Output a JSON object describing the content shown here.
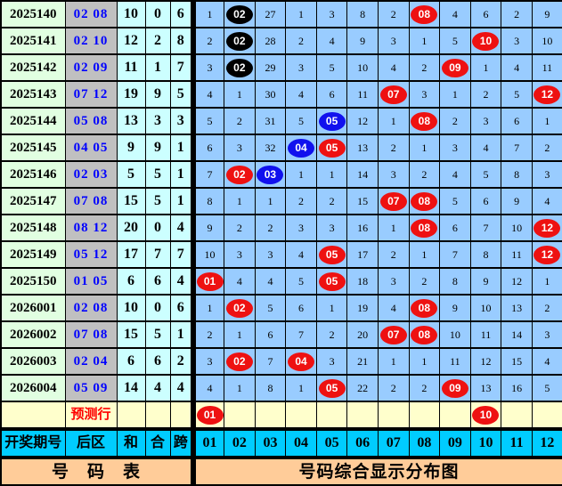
{
  "colors": {
    "ball_red": "#ee1111",
    "ball_blue": "#1111ee",
    "ball_black": "#000000",
    "grid_bg": "#99ccff",
    "period_bg": "#e1ffe1",
    "rear_bg": "#c0c0c0",
    "stat_bg": "#ccffff",
    "prediction_bg": "#ffffcc",
    "header_bg": "#00ccff",
    "footer_bg": "#ffcc99",
    "rear_text": "#0000ff",
    "prediction_text": "#ff0000"
  },
  "chart_data": {
    "type": "table",
    "title": "号码综合显示分布图",
    "left_headers": [
      "开奖期号",
      "后区",
      "和",
      "合",
      "跨"
    ],
    "number_headers": [
      "01",
      "02",
      "03",
      "04",
      "05",
      "06",
      "07",
      "08",
      "09",
      "10",
      "11",
      "12"
    ],
    "rows": [
      {
        "period": "2025140",
        "rear": "02 08",
        "sum": "10",
        "tail": "0",
        "span": "6",
        "cells": [
          "1",
          {
            "v": "02",
            "ball": "black"
          },
          "27",
          "1",
          "3",
          "8",
          "2",
          {
            "v": "08",
            "ball": "red"
          },
          "4",
          "6",
          "2",
          "9"
        ]
      },
      {
        "period": "2025141",
        "rear": "02 10",
        "sum": "12",
        "tail": "2",
        "span": "8",
        "cells": [
          "2",
          {
            "v": "02",
            "ball": "black"
          },
          "28",
          "2",
          "4",
          "9",
          "3",
          "1",
          "5",
          {
            "v": "10",
            "ball": "red"
          },
          "3",
          "10"
        ]
      },
      {
        "period": "2025142",
        "rear": "02 09",
        "sum": "11",
        "tail": "1",
        "span": "7",
        "cells": [
          "3",
          {
            "v": "02",
            "ball": "black"
          },
          "29",
          "3",
          "5",
          "10",
          "4",
          "2",
          {
            "v": "09",
            "ball": "red"
          },
          "1",
          "4",
          "11"
        ]
      },
      {
        "period": "2025143",
        "rear": "07 12",
        "sum": "19",
        "tail": "9",
        "span": "5",
        "cells": [
          "4",
          "1",
          "30",
          "4",
          "6",
          "11",
          {
            "v": "07",
            "ball": "red"
          },
          "3",
          "1",
          "2",
          "5",
          {
            "v": "12",
            "ball": "red"
          }
        ]
      },
      {
        "period": "2025144",
        "rear": "05 08",
        "sum": "13",
        "tail": "3",
        "span": "3",
        "cells": [
          "5",
          "2",
          "31",
          "5",
          {
            "v": "05",
            "ball": "blue"
          },
          "12",
          "1",
          {
            "v": "08",
            "ball": "red"
          },
          "2",
          "3",
          "6",
          "1"
        ]
      },
      {
        "period": "2025145",
        "rear": "04 05",
        "sum": "9",
        "tail": "9",
        "span": "1",
        "cells": [
          "6",
          "3",
          "32",
          {
            "v": "04",
            "ball": "blue"
          },
          {
            "v": "05",
            "ball": "red"
          },
          "13",
          "2",
          "1",
          "3",
          "4",
          "7",
          "2"
        ]
      },
      {
        "period": "2025146",
        "rear": "02 03",
        "sum": "5",
        "tail": "5",
        "span": "1",
        "cells": [
          "7",
          {
            "v": "02",
            "ball": "red"
          },
          {
            "v": "03",
            "ball": "blue"
          },
          "1",
          "1",
          "14",
          "3",
          "2",
          "4",
          "5",
          "8",
          "3"
        ]
      },
      {
        "period": "2025147",
        "rear": "07 08",
        "sum": "15",
        "tail": "5",
        "span": "1",
        "cells": [
          "8",
          "1",
          "1",
          "2",
          "2",
          "15",
          {
            "v": "07",
            "ball": "red"
          },
          {
            "v": "08",
            "ball": "red"
          },
          "5",
          "6",
          "9",
          "4"
        ]
      },
      {
        "period": "2025148",
        "rear": "08 12",
        "sum": "20",
        "tail": "0",
        "span": "4",
        "cells": [
          "9",
          "2",
          "2",
          "3",
          "3",
          "16",
          "1",
          {
            "v": "08",
            "ball": "red"
          },
          "6",
          "7",
          "10",
          {
            "v": "12",
            "ball": "red"
          }
        ]
      },
      {
        "period": "2025149",
        "rear": "05 12",
        "sum": "17",
        "tail": "7",
        "span": "7",
        "cells": [
          "10",
          "3",
          "3",
          "4",
          {
            "v": "05",
            "ball": "red"
          },
          "17",
          "2",
          "1",
          "7",
          "8",
          "11",
          {
            "v": "12",
            "ball": "red"
          }
        ]
      },
      {
        "period": "2025150",
        "rear": "01 05",
        "sum": "6",
        "tail": "6",
        "span": "4",
        "cells": [
          {
            "v": "01",
            "ball": "red"
          },
          "4",
          "4",
          "5",
          {
            "v": "05",
            "ball": "red"
          },
          "18",
          "3",
          "2",
          "8",
          "9",
          "12",
          "1"
        ]
      },
      {
        "period": "2026001",
        "rear": "02 08",
        "sum": "10",
        "tail": "0",
        "span": "6",
        "cells": [
          "1",
          {
            "v": "02",
            "ball": "red"
          },
          "5",
          "6",
          "1",
          "19",
          "4",
          {
            "v": "08",
            "ball": "red"
          },
          "9",
          "10",
          "13",
          "2"
        ]
      },
      {
        "period": "2026002",
        "rear": "07 08",
        "sum": "15",
        "tail": "5",
        "span": "1",
        "cells": [
          "2",
          "1",
          "6",
          "7",
          "2",
          "20",
          {
            "v": "07",
            "ball": "red"
          },
          {
            "v": "08",
            "ball": "red"
          },
          "10",
          "11",
          "14",
          "3"
        ]
      },
      {
        "period": "2026003",
        "rear": "02 04",
        "sum": "6",
        "tail": "6",
        "span": "2",
        "cells": [
          "3",
          {
            "v": "02",
            "ball": "red"
          },
          "7",
          {
            "v": "04",
            "ball": "red"
          },
          "3",
          "21",
          "1",
          "1",
          "11",
          "12",
          "15",
          "4"
        ]
      },
      {
        "period": "2026004",
        "rear": "05 09",
        "sum": "14",
        "tail": "4",
        "span": "4",
        "cells": [
          "4",
          "1",
          "8",
          "1",
          {
            "v": "05",
            "ball": "red"
          },
          "22",
          "2",
          "2",
          {
            "v": "09",
            "ball": "red"
          },
          "13",
          "16",
          "5"
        ]
      }
    ],
    "prediction": {
      "label": "预测行",
      "cells": [
        {
          "v": "01",
          "ball": "red"
        },
        "",
        "",
        "",
        "",
        "",
        "",
        "",
        "",
        {
          "v": "10",
          "ball": "red"
        },
        "",
        ""
      ]
    },
    "footer": {
      "left": "号　码　表",
      "right": "号码综合显示分布图"
    }
  }
}
